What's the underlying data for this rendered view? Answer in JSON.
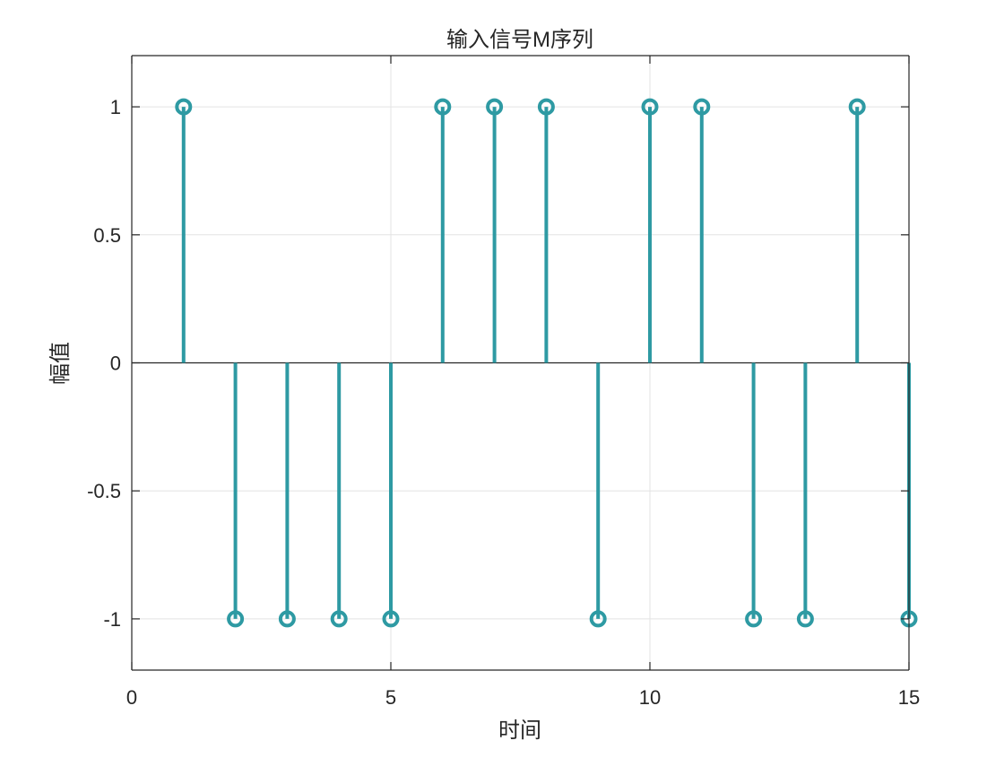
{
  "chart_data": {
    "type": "stem",
    "title": "输入信号M序列",
    "xlabel": "时间",
    "ylabel": "幅值",
    "xlim": [
      0,
      15
    ],
    "ylim": [
      -1.2,
      1.2
    ],
    "x_ticks": [
      0,
      5,
      10,
      15
    ],
    "x_tick_labels": [
      "0",
      "5",
      "10",
      "15"
    ],
    "y_ticks": [
      1,
      0.5,
      0,
      -0.5,
      -1
    ],
    "y_tick_labels": [
      "1",
      "0.5",
      "0",
      "-0.5",
      "-1"
    ],
    "grid": true,
    "series": [
      {
        "x": [
          1,
          2,
          3,
          4,
          5,
          6,
          7,
          8,
          9,
          10,
          11,
          12,
          13,
          14,
          15
        ],
        "values": [
          1,
          -1,
          -1,
          -1,
          -1,
          1,
          1,
          1,
          -1,
          1,
          1,
          -1,
          -1,
          1,
          -1
        ],
        "color": "#2E9AA3",
        "marker": "circle"
      }
    ]
  }
}
